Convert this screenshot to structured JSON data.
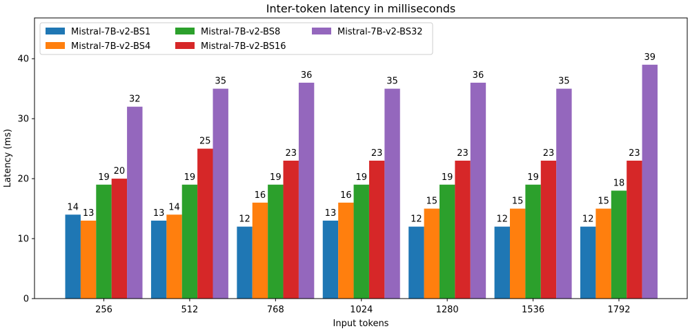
{
  "chart_data": {
    "type": "bar",
    "title": "Inter-token latency in milliseconds",
    "xlabel": "Input tokens",
    "ylabel": "Latency (ms)",
    "categories": [
      "256",
      "512",
      "768",
      "1024",
      "1280",
      "1536",
      "1792"
    ],
    "ylim": [
      0,
      46.8
    ],
    "yticks": [
      0,
      10,
      20,
      30,
      40
    ],
    "grid": false,
    "legend_position": "top-left",
    "legend_columns": 3,
    "series": [
      {
        "name": "Mistral-7B-v2-BS1",
        "color": "#1f77b4",
        "values": [
          14,
          13,
          12,
          13,
          12,
          12,
          12
        ]
      },
      {
        "name": "Mistral-7B-v2-BS4",
        "color": "#ff7f0e",
        "values": [
          13,
          14,
          16,
          16,
          15,
          15,
          15
        ]
      },
      {
        "name": "Mistral-7B-v2-BS8",
        "color": "#2ca02c",
        "values": [
          19,
          19,
          19,
          19,
          19,
          19,
          18
        ]
      },
      {
        "name": "Mistral-7B-v2-BS16",
        "color": "#d62728",
        "values": [
          20,
          25,
          23,
          23,
          23,
          23,
          23
        ]
      },
      {
        "name": "Mistral-7B-v2-BS32",
        "color": "#9467bd",
        "values": [
          32,
          35,
          36,
          35,
          36,
          35,
          39
        ]
      }
    ]
  }
}
